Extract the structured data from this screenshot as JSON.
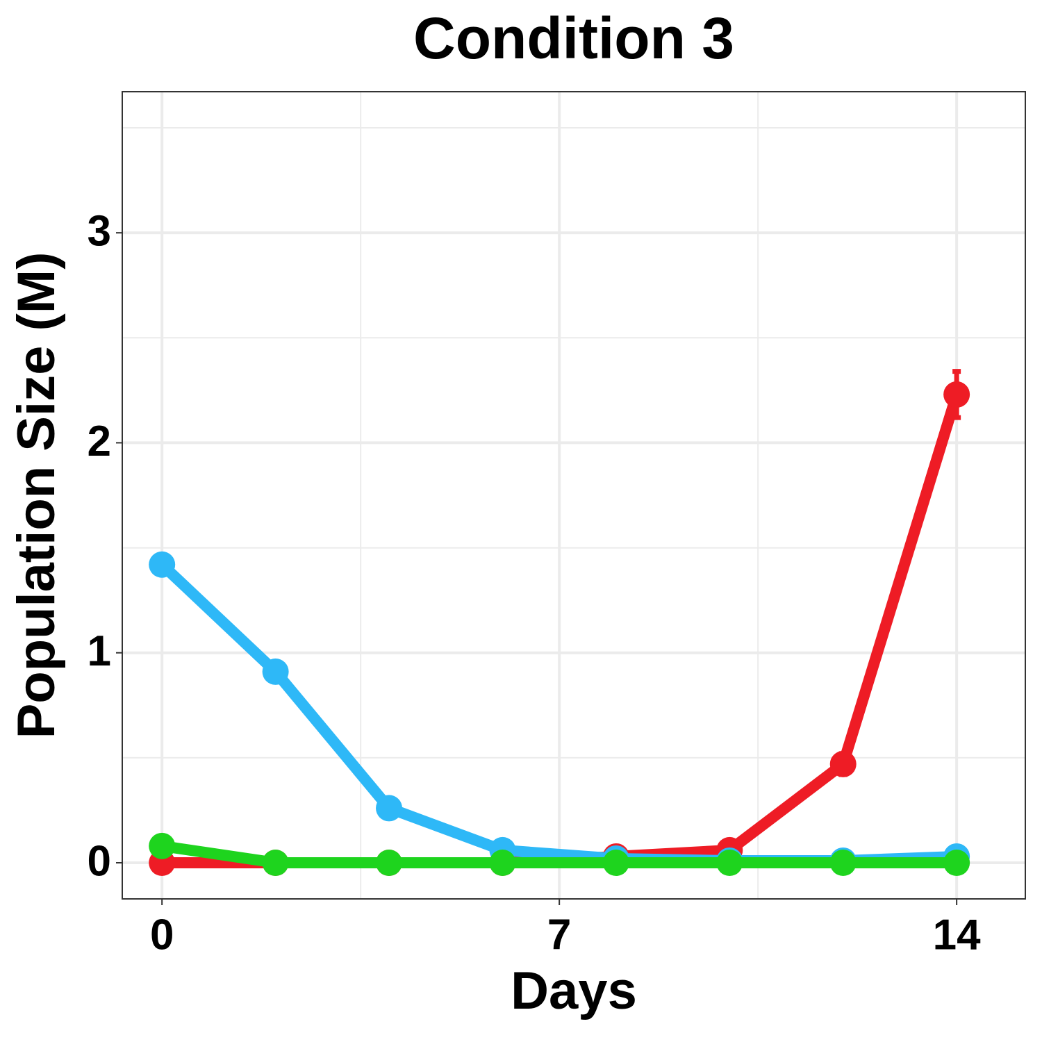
{
  "chart_data": {
    "type": "line",
    "title": "Condition 3",
    "x_label": "Days",
    "y_label": "Population Size (M)",
    "x": [
      0,
      2,
      4,
      6,
      8,
      10,
      12,
      14
    ],
    "series": [
      {
        "color": "#ee1c25",
        "values": [
          0,
          0,
          0,
          0,
          0.03,
          0.06,
          0.47,
          2.23
        ],
        "errors": [
          0,
          0,
          0,
          0,
          0.01,
          0.02,
          0.05,
          0.11
        ]
      },
      {
        "color": "#2eb8f7",
        "values": [
          1.42,
          0.91,
          0.26,
          0.06,
          0.02,
          0.01,
          0.01,
          0.03
        ]
      },
      {
        "color": "#1ed41e",
        "values": [
          0.08,
          0,
          0,
          0,
          0,
          0,
          0,
          0
        ]
      }
    ],
    "xlim": [
      -0.7,
      15.21
    ],
    "xticks": [
      0,
      7,
      14
    ],
    "xminor": [
      3.5,
      10.5
    ],
    "ylim": [
      -0.172,
      3.672
    ],
    "yticks": [
      0,
      1,
      2,
      3
    ],
    "yminor": [
      0.5,
      1.5,
      2.5,
      3.5
    ],
    "grid": true
  }
}
